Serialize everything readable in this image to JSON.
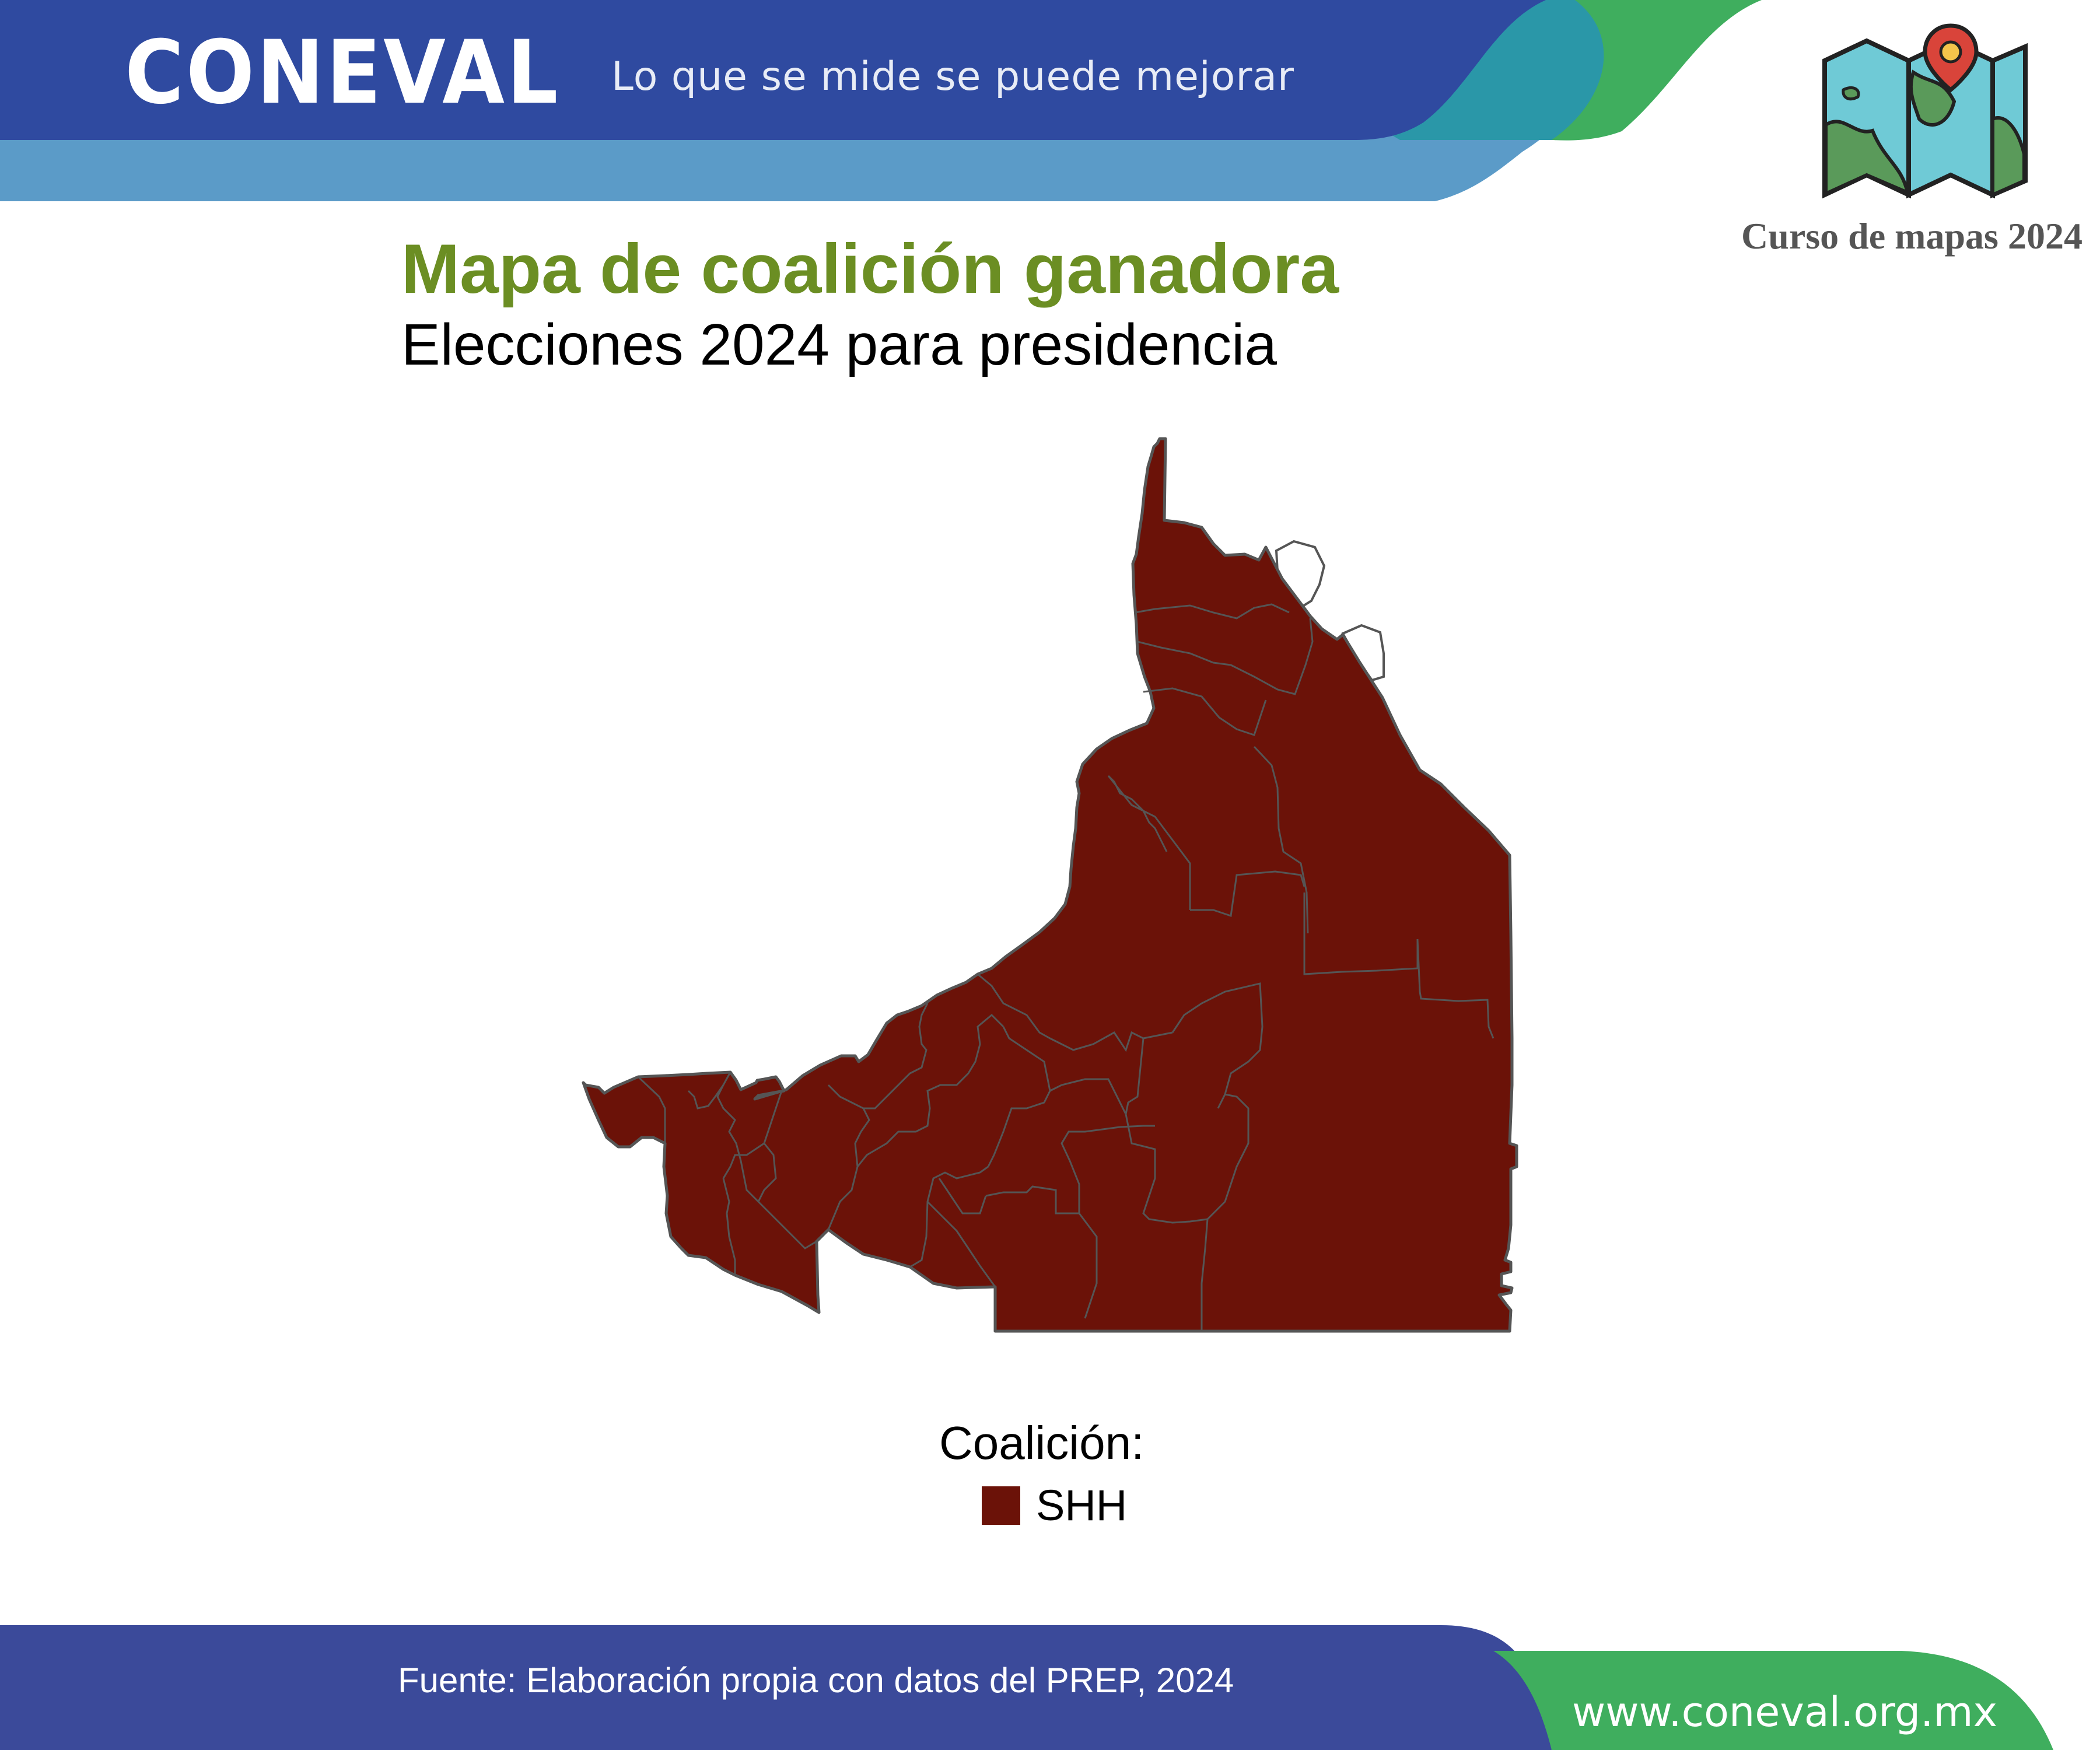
{
  "header": {
    "logo_text": "CONEVAL",
    "tagline": "Lo que se mide se puede mejorar",
    "course_label": "Curso de mapas 2024",
    "icon": "folded-map-with-pin-icon"
  },
  "titles": {
    "title": "Mapa de coalición ganadora",
    "subtitle": "Elecciones 2024 para presidencia"
  },
  "map": {
    "type": "choropleth",
    "region": "Tabasco (municipios)",
    "fill_color": "#6b1208",
    "border_color": "#555555",
    "winning_coalition_all_units": "SHH"
  },
  "legend": {
    "title": "Coalición:",
    "items": [
      {
        "label": "SHH",
        "color": "#6b1208"
      }
    ]
  },
  "footer": {
    "source": "Fuente: Elaboración propia con datos del PREP, 2024",
    "website": "www.coneval.org.mx"
  },
  "colors": {
    "header_blue": "#2f4aa0",
    "light_blue": "#5b9bc8",
    "teal": "#2a97a8",
    "green": "#3fae5e",
    "title_green": "#6b8e23"
  }
}
